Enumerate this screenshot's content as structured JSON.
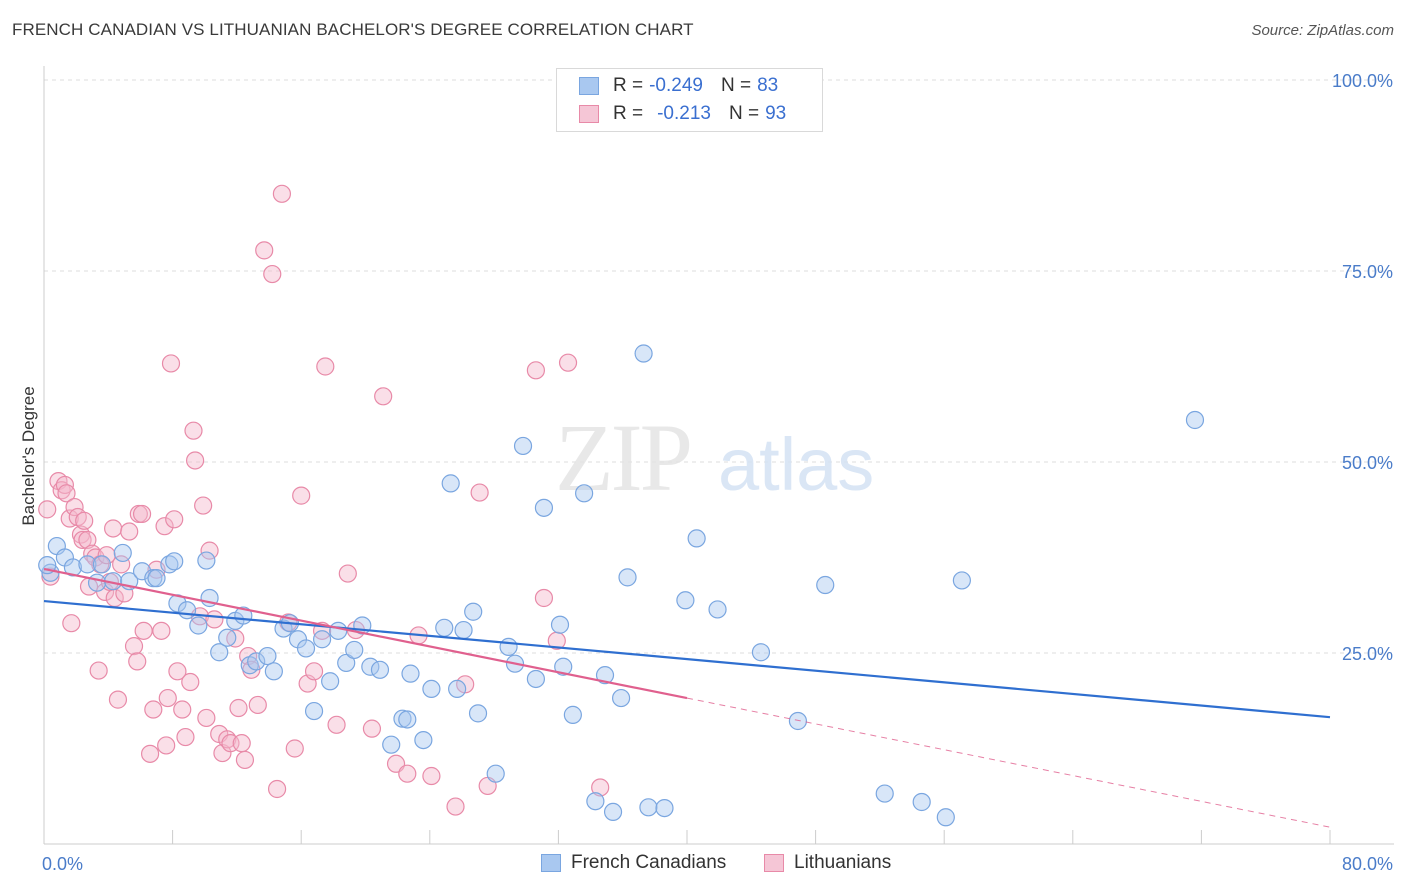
{
  "title": "FRENCH CANADIAN VS LITHUANIAN BACHELOR'S DEGREE CORRELATION CHART",
  "source": "Source: ZipAtlas.com",
  "watermark": {
    "zip": "ZIP",
    "atlas": "atlas"
  },
  "legend_top": [
    {
      "r_label": "R =",
      "r_value": "-0.249",
      "n_label": "N =",
      "n_value": "83"
    },
    {
      "r_label": "R =",
      "r_value": "-0.213",
      "n_label": "N =",
      "n_value": "93"
    }
  ],
  "legend_bottom": [
    "French Canadians",
    "Lithuanians"
  ],
  "colors": {
    "blue_fill": "#a9c8f0",
    "blue_stroke": "#7aa6e0",
    "blue_line": "#2f6fd0",
    "pink_fill": "#f5b8cc",
    "pink_stroke": "#e88aa8",
    "pink_line": "#e0608e",
    "tick_text": "#4a7cc9",
    "grid": "#dddddd"
  },
  "chart_data": {
    "type": "scatter",
    "title": "FRENCH CANADIAN VS LITHUANIAN BACHELOR'S DEGREE CORRELATION CHART",
    "xlabel": "",
    "ylabel": "Bachelor's Degree",
    "xlim": [
      0,
      80
    ],
    "ylim": [
      0,
      100
    ],
    "x_tick_labels": [
      "0.0%",
      "80.0%"
    ],
    "y_ticks": [
      25,
      50,
      75,
      100
    ],
    "y_tick_labels": [
      "25.0%",
      "50.0%",
      "75.0%",
      "100.0%"
    ],
    "series": [
      {
        "name": "French Canadians",
        "r": -0.249,
        "n": 83,
        "trend": {
          "x0": 0,
          "y0": 31.8,
          "x1": 80,
          "y1": 16.6,
          "dashed_from": null
        },
        "points": [
          [
            0.4,
            35.5
          ],
          [
            0.8,
            39
          ],
          [
            1.3,
            37.5
          ],
          [
            1.8,
            36.2
          ],
          [
            2.7,
            36.6
          ],
          [
            3.3,
            34.2
          ],
          [
            3.6,
            36.6
          ],
          [
            4.3,
            34.4
          ],
          [
            4.9,
            38.1
          ],
          [
            5.3,
            34.4
          ],
          [
            6.1,
            35.7
          ],
          [
            6.8,
            34.8
          ],
          [
            7.0,
            34.8
          ],
          [
            7.8,
            36.6
          ],
          [
            8.1,
            37.0
          ],
          [
            8.3,
            31.5
          ],
          [
            8.9,
            30.6
          ],
          [
            9.6,
            28.6
          ],
          [
            10.1,
            37.1
          ],
          [
            10.3,
            32.2
          ],
          [
            10.9,
            25.1
          ],
          [
            11.4,
            27.0
          ],
          [
            11.9,
            29.2
          ],
          [
            12.4,
            29.9
          ],
          [
            12.8,
            23.4
          ],
          [
            13.2,
            23.9
          ],
          [
            13.9,
            24.6
          ],
          [
            14.3,
            22.6
          ],
          [
            14.9,
            28.2
          ],
          [
            15.3,
            28.9
          ],
          [
            15.8,
            26.8
          ],
          [
            16.3,
            25.6
          ],
          [
            16.8,
            17.4
          ],
          [
            17.3,
            26.8
          ],
          [
            17.8,
            21.3
          ],
          [
            18.3,
            27.9
          ],
          [
            18.8,
            23.7
          ],
          [
            19.3,
            25.4
          ],
          [
            19.8,
            28.6
          ],
          [
            20.3,
            23.2
          ],
          [
            20.9,
            22.8
          ],
          [
            21.6,
            13.0
          ],
          [
            22.3,
            16.4
          ],
          [
            22.6,
            16.3
          ],
          [
            22.8,
            22.3
          ],
          [
            23.6,
            13.6
          ],
          [
            24.1,
            20.3
          ],
          [
            24.9,
            28.3
          ],
          [
            25.3,
            47.2
          ],
          [
            25.7,
            20.3
          ],
          [
            26.1,
            28.0
          ],
          [
            26.7,
            30.4
          ],
          [
            27.0,
            17.1
          ],
          [
            28.1,
            9.2
          ],
          [
            28.9,
            25.8
          ],
          [
            29.3,
            23.6
          ],
          [
            29.8,
            52.1
          ],
          [
            30.6,
            21.6
          ],
          [
            31.1,
            44.0
          ],
          [
            32.1,
            28.7
          ],
          [
            32.3,
            23.2
          ],
          [
            32.9,
            16.9
          ],
          [
            33.6,
            45.9
          ],
          [
            34.3,
            5.6
          ],
          [
            34.9,
            22.1
          ],
          [
            35.4,
            4.2
          ],
          [
            35.9,
            19.1
          ],
          [
            36.3,
            34.9
          ],
          [
            37.3,
            64.2
          ],
          [
            37.6,
            4.8
          ],
          [
            38.6,
            4.7
          ],
          [
            39.9,
            31.9
          ],
          [
            40.6,
            40.0
          ],
          [
            41.9,
            30.7
          ],
          [
            44.6,
            25.1
          ],
          [
            46.9,
            16.1
          ],
          [
            48.6,
            33.9
          ],
          [
            52.3,
            6.6
          ],
          [
            54.6,
            5.5
          ],
          [
            56.1,
            3.5
          ],
          [
            57.1,
            34.5
          ],
          [
            71.6,
            55.5
          ],
          [
            0.2,
            36.5
          ]
        ]
      },
      {
        "name": "Lithuanians",
        "r": -0.213,
        "n": 93,
        "trend": {
          "x0": 0,
          "y0": 36.0,
          "x1": 80,
          "y1": 2.2,
          "dashed_from": 40
        },
        "points": [
          [
            0.2,
            43.8
          ],
          [
            0.4,
            35.0
          ],
          [
            0.9,
            47.5
          ],
          [
            1.1,
            46.3
          ],
          [
            1.3,
            47.0
          ],
          [
            1.4,
            45.9
          ],
          [
            1.6,
            42.6
          ],
          [
            1.7,
            28.9
          ],
          [
            1.9,
            44.1
          ],
          [
            2.1,
            42.8
          ],
          [
            2.3,
            40.5
          ],
          [
            2.4,
            39.8
          ],
          [
            2.5,
            42.3
          ],
          [
            2.7,
            39.8
          ],
          [
            2.8,
            33.7
          ],
          [
            3.0,
            38.0
          ],
          [
            3.2,
            37.5
          ],
          [
            3.4,
            22.7
          ],
          [
            3.5,
            36.6
          ],
          [
            3.8,
            33.0
          ],
          [
            3.9,
            37.8
          ],
          [
            4.1,
            34.3
          ],
          [
            4.3,
            41.3
          ],
          [
            4.4,
            32.2
          ],
          [
            4.6,
            18.9
          ],
          [
            4.8,
            36.6
          ],
          [
            5.0,
            32.8
          ],
          [
            5.3,
            40.9
          ],
          [
            5.6,
            25.9
          ],
          [
            5.8,
            23.9
          ],
          [
            5.9,
            43.2
          ],
          [
            6.1,
            43.2
          ],
          [
            6.2,
            27.9
          ],
          [
            6.6,
            11.8
          ],
          [
            6.8,
            17.6
          ],
          [
            7.0,
            35.9
          ],
          [
            7.3,
            27.9
          ],
          [
            7.5,
            41.6
          ],
          [
            7.6,
            12.9
          ],
          [
            7.7,
            19.1
          ],
          [
            7.9,
            62.9
          ],
          [
            8.1,
            42.5
          ],
          [
            8.3,
            22.6
          ],
          [
            8.6,
            17.6
          ],
          [
            8.8,
            14.0
          ],
          [
            9.1,
            21.2
          ],
          [
            9.3,
            54.1
          ],
          [
            9.4,
            50.2
          ],
          [
            9.7,
            29.8
          ],
          [
            9.9,
            44.3
          ],
          [
            10.1,
            16.5
          ],
          [
            10.3,
            38.4
          ],
          [
            10.6,
            29.4
          ],
          [
            10.9,
            14.4
          ],
          [
            11.1,
            11.9
          ],
          [
            11.4,
            13.7
          ],
          [
            11.6,
            13.2
          ],
          [
            11.9,
            26.9
          ],
          [
            12.1,
            17.8
          ],
          [
            12.3,
            13.2
          ],
          [
            12.5,
            11.0
          ],
          [
            12.7,
            24.6
          ],
          [
            12.9,
            22.8
          ],
          [
            13.3,
            18.2
          ],
          [
            13.7,
            77.7
          ],
          [
            14.2,
            74.6
          ],
          [
            14.5,
            7.2
          ],
          [
            14.8,
            85.1
          ],
          [
            15.2,
            29.0
          ],
          [
            15.6,
            12.5
          ],
          [
            16.0,
            45.6
          ],
          [
            16.4,
            21.0
          ],
          [
            16.8,
            22.6
          ],
          [
            17.3,
            27.9
          ],
          [
            18.2,
            15.6
          ],
          [
            18.9,
            35.4
          ],
          [
            19.4,
            28.0
          ],
          [
            20.4,
            15.1
          ],
          [
            21.1,
            58.6
          ],
          [
            21.9,
            10.5
          ],
          [
            22.6,
            9.2
          ],
          [
            23.3,
            27.3
          ],
          [
            24.1,
            8.9
          ],
          [
            25.6,
            4.9
          ],
          [
            26.2,
            20.9
          ],
          [
            27.1,
            46.0
          ],
          [
            27.6,
            7.6
          ],
          [
            30.6,
            62.0
          ],
          [
            31.1,
            32.2
          ],
          [
            31.9,
            26.6
          ],
          [
            32.6,
            63.0
          ],
          [
            34.6,
            7.4
          ],
          [
            17.5,
            62.5
          ]
        ]
      }
    ]
  }
}
